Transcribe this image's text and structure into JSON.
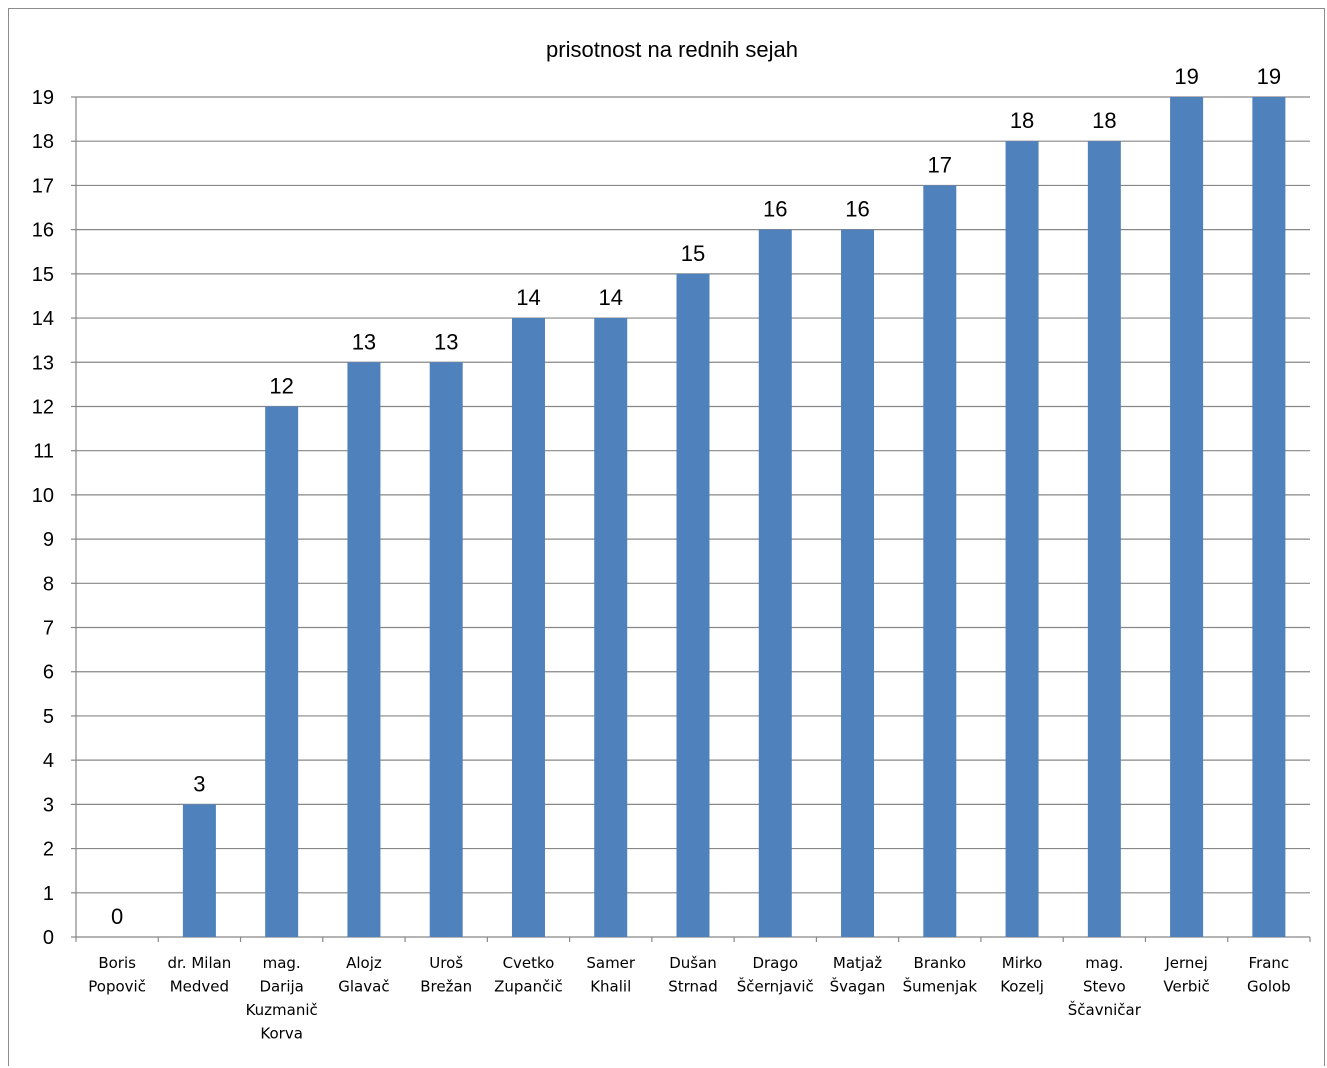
{
  "chart_data": {
    "type": "bar",
    "title": "prisotnost na rednih sejah",
    "xlabel": "",
    "ylabel": "",
    "ylim": [
      0,
      19
    ],
    "yticks": [
      0,
      1,
      2,
      3,
      4,
      5,
      6,
      7,
      8,
      9,
      10,
      11,
      12,
      13,
      14,
      15,
      16,
      17,
      18,
      19
    ],
    "grid": true,
    "legend": "none",
    "bar_color": "#4f81bd",
    "categories": [
      [
        "Boris",
        "Popovič"
      ],
      [
        "dr. Milan",
        "Medved"
      ],
      [
        "mag.",
        "Darija",
        "Kuzmanič",
        "Korva"
      ],
      [
        "Alojz",
        "Glavač"
      ],
      [
        "Uroš",
        "Brežan"
      ],
      [
        "Cvetko",
        "Zupančič"
      ],
      [
        "Samer",
        "Khalil"
      ],
      [
        "Dušan",
        "Strnad"
      ],
      [
        "Drago",
        "Ščernjavič"
      ],
      [
        "Matjaž",
        "Švagan"
      ],
      [
        "Branko",
        "Šumenjak"
      ],
      [
        "Mirko",
        "Kozelj"
      ],
      [
        "mag.",
        "Stevo",
        "Ščavničar"
      ],
      [
        "Jernej",
        "Verbič"
      ],
      [
        "Franc",
        "Golob"
      ]
    ],
    "values": [
      0,
      3,
      12,
      13,
      13,
      14,
      14,
      15,
      16,
      16,
      17,
      18,
      18,
      19,
      19
    ]
  }
}
